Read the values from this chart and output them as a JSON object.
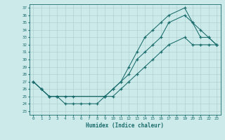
{
  "xlabel": "Humidex (Indice chaleur)",
  "bg_color": "#cceaea",
  "line_color": "#1a6b6b",
  "grid_color": "#aacccc",
  "xmin": -0.5,
  "xmax": 23.5,
  "ymin": 22.5,
  "ymax": 37.5,
  "xticks": [
    0,
    1,
    2,
    3,
    4,
    5,
    6,
    7,
    8,
    9,
    10,
    11,
    12,
    13,
    14,
    15,
    16,
    17,
    18,
    19,
    20,
    21,
    22,
    23
  ],
  "yticks": [
    23,
    24,
    25,
    26,
    27,
    28,
    29,
    30,
    31,
    32,
    33,
    34,
    35,
    36,
    37
  ],
  "series": {
    "top_x": [
      0,
      1,
      2,
      3,
      9,
      10,
      11,
      12,
      13,
      14,
      15,
      16,
      17,
      19,
      20,
      21,
      22,
      23
    ],
    "top_y": [
      27,
      26,
      25,
      25,
      25,
      26,
      27,
      29,
      31,
      33,
      34,
      35,
      36,
      37,
      35,
      34,
      33,
      32
    ],
    "mid_x": [
      0,
      1,
      2,
      3,
      4,
      5,
      9,
      10,
      11,
      12,
      13,
      14,
      15,
      16,
      17,
      19,
      20,
      21,
      22,
      23
    ],
    "mid_y": [
      27,
      26,
      25,
      25,
      25,
      25,
      25,
      26,
      27,
      28,
      30,
      31,
      32,
      33,
      35,
      36,
      35,
      33,
      33,
      32
    ],
    "bot_x": [
      0,
      1,
      2,
      3,
      4,
      5,
      6,
      7,
      8,
      9,
      10,
      11,
      12,
      13,
      14,
      15,
      16,
      17,
      19,
      20,
      21,
      22,
      23
    ],
    "bot_y": [
      27,
      26,
      25,
      25,
      24,
      24,
      24,
      24,
      24,
      25,
      25,
      26,
      27,
      28,
      29,
      30,
      31,
      32,
      33,
      32,
      32,
      32,
      32
    ]
  }
}
